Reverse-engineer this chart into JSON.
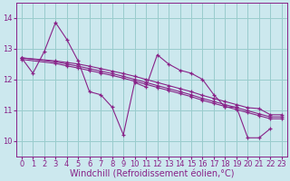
{
  "bg_color": "#cce8ee",
  "line_color": "#882288",
  "grid_color": "#99cccc",
  "xlabel": "Windchill (Refroidissement éolien,°C)",
  "xlabel_color": "#882288",
  "xlabel_fontsize": 7.0,
  "tick_color": "#882288",
  "tick_fontsize": 6.0,
  "ylim": [
    9.5,
    14.5
  ],
  "xlim": [
    -0.5,
    23.5
  ],
  "yticks": [
    10,
    11,
    12,
    13,
    14
  ],
  "xticks": [
    0,
    1,
    2,
    3,
    4,
    5,
    6,
    7,
    8,
    9,
    10,
    11,
    12,
    13,
    14,
    15,
    16,
    17,
    18,
    19,
    20,
    21,
    22,
    23
  ],
  "series1_x": [
    0,
    1,
    2,
    3,
    4,
    5,
    6,
    7,
    8,
    9,
    10,
    11,
    12,
    13,
    14,
    15,
    16,
    17,
    18,
    19,
    20,
    21,
    22
  ],
  "series1_y": [
    12.7,
    12.2,
    12.9,
    13.85,
    13.3,
    12.6,
    11.6,
    11.5,
    11.1,
    10.2,
    11.9,
    11.75,
    12.8,
    12.5,
    12.3,
    12.2,
    12.0,
    11.5,
    11.1,
    11.1,
    10.1,
    10.1,
    10.4
  ],
  "series2_x": [
    0,
    3,
    4,
    5,
    6,
    7,
    8,
    9,
    10,
    11,
    12,
    13,
    14,
    15,
    16,
    17,
    18,
    19,
    20,
    21,
    22,
    23
  ],
  "series2_y": [
    12.7,
    12.6,
    12.55,
    12.5,
    12.43,
    12.35,
    12.27,
    12.19,
    12.1,
    12.0,
    11.9,
    11.8,
    11.7,
    11.6,
    11.48,
    11.38,
    11.28,
    11.18,
    11.08,
    11.05,
    10.85,
    10.85
  ],
  "series3_x": [
    0,
    3,
    4,
    5,
    6,
    7,
    8,
    9,
    10,
    11,
    12,
    13,
    14,
    15,
    16,
    17,
    18,
    19,
    20,
    21,
    22,
    23
  ],
  "series3_y": [
    12.7,
    12.57,
    12.5,
    12.43,
    12.35,
    12.27,
    12.19,
    12.1,
    12.0,
    11.9,
    11.8,
    11.7,
    11.6,
    11.5,
    11.38,
    11.28,
    11.18,
    11.08,
    10.98,
    10.88,
    10.78,
    10.78
  ],
  "series4_x": [
    0,
    3,
    4,
    5,
    6,
    7,
    8,
    9,
    10,
    11,
    12,
    13,
    14,
    15,
    16,
    17,
    18,
    19,
    20,
    21,
    22,
    23
  ],
  "series4_y": [
    12.65,
    12.52,
    12.44,
    12.37,
    12.29,
    12.21,
    12.13,
    12.04,
    11.94,
    11.84,
    11.74,
    11.64,
    11.54,
    11.44,
    11.32,
    11.22,
    11.12,
    11.02,
    10.92,
    10.82,
    10.72,
    10.72
  ]
}
